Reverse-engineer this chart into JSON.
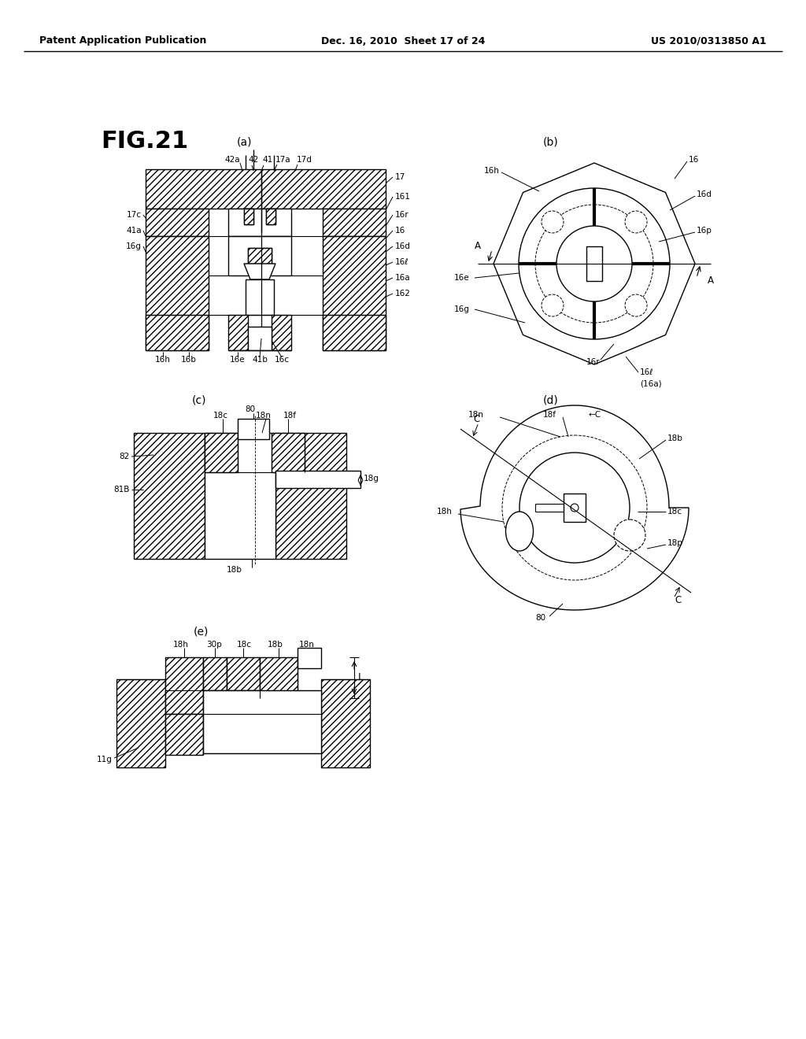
{
  "header_left": "Patent Application Publication",
  "header_center": "Dec. 16, 2010  Sheet 17 of 24",
  "header_right": "US 2010/0313850 A1",
  "fig_label": "FIG.21",
  "subfig_a": "(a)",
  "subfig_b": "(b)",
  "subfig_c": "(c)",
  "subfig_d": "(d)",
  "subfig_e": "(e)"
}
